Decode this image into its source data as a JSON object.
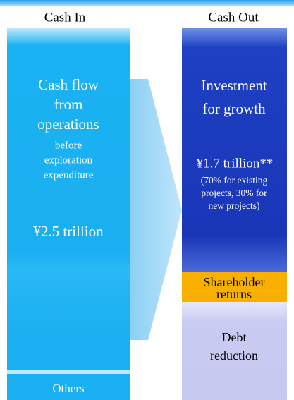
{
  "cash_in": {
    "header": "Cash In",
    "main": {
      "lines": [
        "Cash flow",
        "from",
        "operations"
      ],
      "sub_lines": [
        "before",
        "exploration",
        "expenditure"
      ],
      "amount": "¥2.5 trillion"
    },
    "others": "Others"
  },
  "cash_out": {
    "header": "Cash Out",
    "investment": {
      "lines": [
        "Investment",
        "for growth"
      ],
      "amount": "¥1.7 trillion**",
      "note_lines": [
        "(70% for existing",
        "projects, 30% for",
        "new projects)"
      ]
    },
    "shareholder": [
      "Shareholder",
      "returns"
    ],
    "debt": [
      "Debt",
      "reduction"
    ]
  }
}
